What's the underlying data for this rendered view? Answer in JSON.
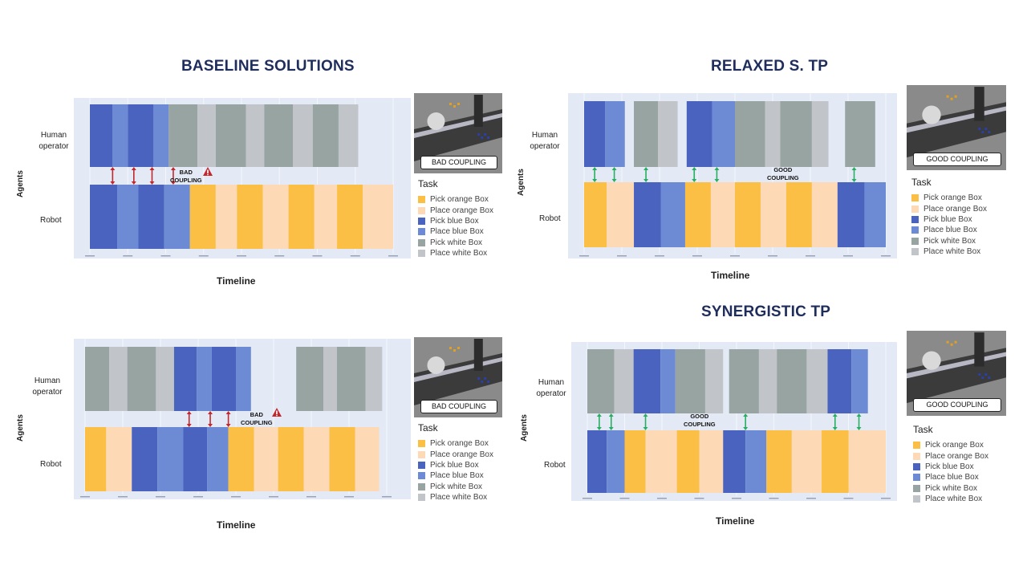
{
  "titles": {
    "baseline": "BASELINE SOLUTIONS",
    "relaxed": "RELAXED S. TP",
    "synergistic": "SYNERGISTIC TP"
  },
  "common": {
    "y_axis_label": "Agents",
    "x_axis_label": "Timeline",
    "human_label_line1": "Human",
    "human_label_line2": "operator",
    "robot_label": "Robot",
    "legend_title": "Task"
  },
  "legend": [
    {
      "label": "Pick orange Box",
      "color": "#fbbf45"
    },
    {
      "label": "Place orange Box",
      "color": "#fdd9b5"
    },
    {
      "label": "Pick blue Box",
      "color": "#4a63bf"
    },
    {
      "label": "Place blue Box",
      "color": "#6d8bd4"
    },
    {
      "label": "Pick white Box",
      "color": "#97a4a2"
    },
    {
      "label": "Place white Box",
      "color": "#c1c4c8"
    }
  ],
  "couplings": {
    "bad": {
      "line1": "BAD",
      "line2": "COUPLING",
      "thumb_label": "BAD COUPLING"
    },
    "good": {
      "line1": "GOOD",
      "line2": "COUPLING",
      "thumb_label": "GOOD COUPLING"
    }
  },
  "chart_data": [
    {
      "type": "gantt",
      "id": "baseline-top",
      "quality": "bad",
      "human": [
        [
          "pick_blue",
          0,
          0.075
        ],
        [
          "place_blue",
          0.075,
          0.125
        ],
        [
          "pick_blue",
          0.125,
          0.21
        ],
        [
          "place_blue",
          0.21,
          0.26
        ],
        [
          "pick_white",
          0.26,
          0.355
        ],
        [
          "place_white",
          0.355,
          0.415
        ],
        [
          "pick_white",
          0.415,
          0.515
        ],
        [
          "place_white",
          0.515,
          0.575
        ],
        [
          "pick_white",
          0.575,
          0.67
        ],
        [
          "place_white",
          0.67,
          0.735
        ],
        [
          "pick_white",
          0.735,
          0.82
        ],
        [
          "place_white",
          0.82,
          0.885
        ]
      ],
      "robot": [
        [
          "pick_blue",
          0,
          0.09
        ],
        [
          "place_blue",
          0.09,
          0.16
        ],
        [
          "pick_blue",
          0.16,
          0.245
        ],
        [
          "place_blue",
          0.245,
          0.33
        ],
        [
          "pick_orange",
          0.33,
          0.415
        ],
        [
          "place_orange",
          0.415,
          0.485
        ],
        [
          "pick_orange",
          0.485,
          0.57
        ],
        [
          "place_orange",
          0.57,
          0.655
        ],
        [
          "pick_orange",
          0.655,
          0.74
        ],
        [
          "place_orange",
          0.74,
          0.815
        ],
        [
          "pick_orange",
          0.815,
          0.9
        ],
        [
          "place_orange",
          0.9,
          1.0
        ]
      ],
      "links": [
        0.075,
        0.145,
        0.205,
        0.275
      ]
    },
    {
      "type": "gantt",
      "id": "baseline-bottom",
      "quality": "bad",
      "human": [
        [
          "pick_white",
          0,
          0.08
        ],
        [
          "place_white",
          0.08,
          0.14
        ],
        [
          "pick_white",
          0.14,
          0.235
        ],
        [
          "place_white",
          0.235,
          0.295
        ],
        [
          "pick_blue",
          0.295,
          0.37
        ],
        [
          "place_blue",
          0.37,
          0.42
        ],
        [
          "pick_blue",
          0.42,
          0.5
        ],
        [
          "place_blue",
          0.5,
          0.55
        ],
        [
          "pick_white",
          0.7,
          0.79
        ],
        [
          "place_white",
          0.79,
          0.835
        ],
        [
          "pick_white",
          0.835,
          0.93
        ],
        [
          "place_white",
          0.93,
          0.985
        ]
      ],
      "robot": [
        [
          "pick_orange",
          0,
          0.07
        ],
        [
          "place_orange",
          0.07,
          0.155
        ],
        [
          "pick_blue",
          0.155,
          0.24
        ],
        [
          "place_blue",
          0.24,
          0.325
        ],
        [
          "pick_blue",
          0.325,
          0.405
        ],
        [
          "place_blue",
          0.405,
          0.475
        ],
        [
          "pick_orange",
          0.475,
          0.56
        ],
        [
          "place_orange",
          0.56,
          0.64
        ],
        [
          "pick_orange",
          0.64,
          0.725
        ],
        [
          "place_orange",
          0.725,
          0.81
        ],
        [
          "pick_orange",
          0.81,
          0.895
        ],
        [
          "place_orange",
          0.895,
          0.975
        ]
      ],
      "links": [
        0.345,
        0.415,
        0.475
      ]
    },
    {
      "type": "gantt",
      "id": "relaxed",
      "quality": "good",
      "human": [
        [
          "pick_blue",
          0,
          0.07
        ],
        [
          "place_blue",
          0.07,
          0.135
        ],
        [
          "pick_white",
          0.165,
          0.245
        ],
        [
          "place_white",
          0.245,
          0.31
        ],
        [
          "pick_blue",
          0.34,
          0.425
        ],
        [
          "place_blue",
          0.425,
          0.5
        ],
        [
          "pick_white",
          0.5,
          0.6
        ],
        [
          "place_white",
          0.6,
          0.65
        ],
        [
          "pick_white",
          0.65,
          0.755
        ],
        [
          "place_white",
          0.755,
          0.81
        ],
        [
          "pick_white",
          0.865,
          0.965
        ]
      ],
      "robot": [
        [
          "pick_orange",
          0,
          0.075
        ],
        [
          "place_orange",
          0.075,
          0.165
        ],
        [
          "pick_blue",
          0.165,
          0.255
        ],
        [
          "place_blue",
          0.255,
          0.335
        ],
        [
          "pick_orange",
          0.335,
          0.42
        ],
        [
          "place_orange",
          0.42,
          0.5
        ],
        [
          "pick_orange",
          0.5,
          0.585
        ],
        [
          "place_orange",
          0.585,
          0.67
        ],
        [
          "pick_orange",
          0.67,
          0.755
        ],
        [
          "place_orange",
          0.755,
          0.84
        ],
        [
          "pick_blue",
          0.84,
          0.93
        ],
        [
          "place_blue",
          0.93,
          1.0
        ]
      ],
      "links": [
        0.035,
        0.1,
        0.205,
        0.365,
        0.44,
        0.895
      ]
    },
    {
      "type": "gantt",
      "id": "synergistic",
      "quality": "good",
      "human": [
        [
          "pick_white",
          0,
          0.09
        ],
        [
          "place_white",
          0.09,
          0.155
        ],
        [
          "pick_blue",
          0.155,
          0.245
        ],
        [
          "place_blue",
          0.245,
          0.295
        ],
        [
          "pick_white",
          0.295,
          0.395
        ],
        [
          "place_white",
          0.395,
          0.455
        ],
        [
          "pick_white",
          0.475,
          0.575
        ],
        [
          "place_white",
          0.575,
          0.635
        ],
        [
          "pick_white",
          0.635,
          0.735
        ],
        [
          "place_white",
          0.735,
          0.805
        ],
        [
          "pick_blue",
          0.805,
          0.885
        ],
        [
          "place_blue",
          0.885,
          0.94
        ]
      ],
      "robot": [
        [
          "pick_blue",
          0,
          0.065
        ],
        [
          "place_blue",
          0.065,
          0.125
        ],
        [
          "pick_orange",
          0.125,
          0.195
        ],
        [
          "place_orange",
          0.195,
          0.3
        ],
        [
          "pick_orange",
          0.3,
          0.375
        ],
        [
          "place_orange",
          0.375,
          0.455
        ],
        [
          "pick_blue",
          0.455,
          0.53
        ],
        [
          "place_blue",
          0.53,
          0.6
        ],
        [
          "pick_orange",
          0.6,
          0.685
        ],
        [
          "place_orange",
          0.685,
          0.785
        ],
        [
          "pick_orange",
          0.785,
          0.875
        ],
        [
          "place_orange",
          0.875,
          1.0
        ]
      ],
      "links": [
        0.04,
        0.08,
        0.195,
        0.53,
        0.83,
        0.91
      ]
    }
  ]
}
